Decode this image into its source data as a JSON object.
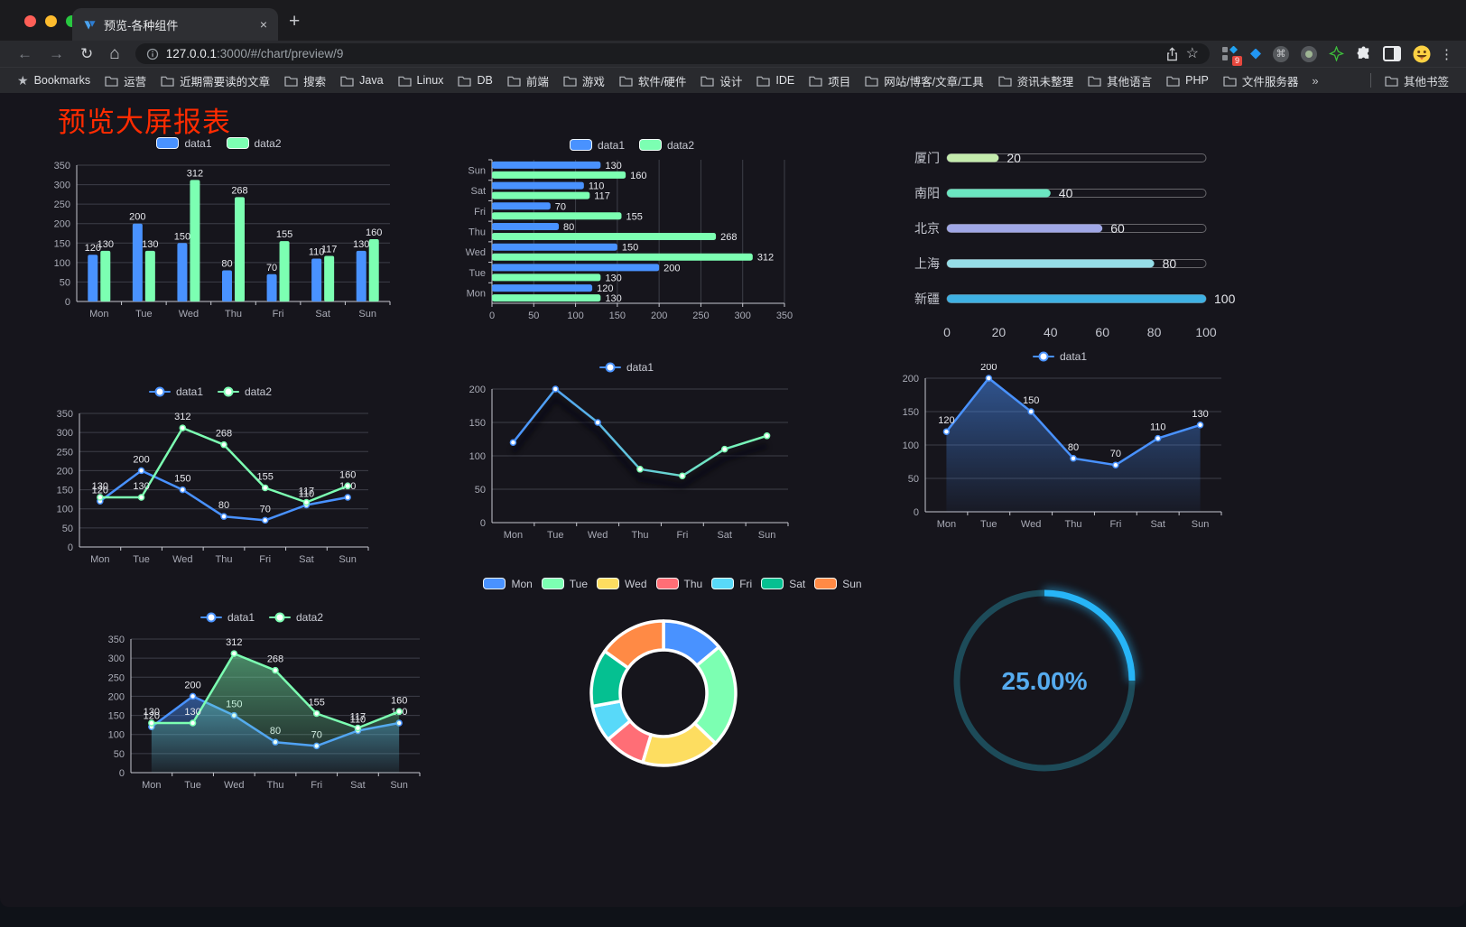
{
  "browser": {
    "tab_title": "预览-各种组件",
    "tab_close": "×",
    "new_tab_label": "+",
    "url_host": "127.0.0.1",
    "url_rest": ":3000/#/chart/preview/9",
    "bookmarks_label": "Bookmarks",
    "bookmarks": [
      "运营",
      "近期需要读的文章",
      "搜索",
      "Java",
      "Linux",
      "DB",
      "前端",
      "游戏",
      "软件/硬件",
      "设计",
      "IDE",
      "项目",
      "网站/博客/文章/工具",
      "资讯未整理",
      "其他语言",
      "PHP",
      "文件服务器"
    ],
    "bookmarks_overflow": "»",
    "other_bookmarks": "其他书签",
    "extension_badge": "9",
    "cmd_glyph": "⌘",
    "kebab_glyph": "⋮",
    "back_glyph": "←",
    "forward_glyph": "→",
    "reload_glyph": "↻",
    "home_glyph": "⌂",
    "star_glyph": "☆",
    "bookmark_star_glyph": "★"
  },
  "page": {
    "title": "预览大屏报表",
    "title_color": "#ff2b00",
    "background": "#16151c"
  },
  "chart_data": [
    {
      "id": "bar-vertical",
      "type": "bar",
      "categories": [
        "Mon",
        "Tue",
        "Wed",
        "Thu",
        "Fri",
        "Sat",
        "Sun"
      ],
      "series": [
        {
          "name": "data1",
          "color": "#4992ff",
          "values": [
            120,
            200,
            150,
            80,
            70,
            110,
            130
          ]
        },
        {
          "name": "data2",
          "color": "#7cffb2",
          "values": [
            130,
            130,
            312,
            268,
            155,
            117,
            160
          ]
        }
      ],
      "ylim": [
        0,
        350
      ],
      "ytick": 50,
      "legend_position": "top",
      "grid": true
    },
    {
      "id": "bar-horizontal",
      "type": "hbar",
      "categories": [
        "Mon",
        "Tue",
        "Wed",
        "Thu",
        "Fri",
        "Sat",
        "Sun"
      ],
      "series": [
        {
          "name": "data1",
          "color": "#4992ff",
          "values": [
            120,
            200,
            150,
            80,
            70,
            110,
            130
          ]
        },
        {
          "name": "data2",
          "color": "#7cffb2",
          "values": [
            130,
            130,
            312,
            268,
            155,
            117,
            160
          ]
        }
      ],
      "xlim": [
        0,
        350
      ],
      "xtick": 50,
      "legend_position": "top",
      "grid": true
    },
    {
      "id": "progress",
      "type": "progress",
      "categories": [
        "厦门",
        "南阳",
        "北京",
        "上海",
        "新疆"
      ],
      "values": [
        20,
        40,
        60,
        80,
        100
      ],
      "colors": [
        "#c4ebad",
        "#6be6c1",
        "#a0a7e6",
        "#96dee8",
        "#3fb1e3"
      ],
      "xlim": [
        0,
        100
      ],
      "xticks": [
        0,
        20,
        40,
        60,
        80,
        100
      ]
    },
    {
      "id": "line-two",
      "type": "line",
      "categories": [
        "Mon",
        "Tue",
        "Wed",
        "Thu",
        "Fri",
        "Sat",
        "Sun"
      ],
      "series": [
        {
          "name": "data1",
          "color": "#4992ff",
          "values": [
            120,
            200,
            150,
            80,
            70,
            110,
            130
          ]
        },
        {
          "name": "data2",
          "color": "#7cffb2",
          "values": [
            130,
            130,
            312,
            268,
            155,
            117,
            160
          ]
        }
      ],
      "ylim": [
        0,
        350
      ],
      "ytick": 50,
      "labels": true,
      "legend_position": "top",
      "grid": true
    },
    {
      "id": "line-gradient",
      "type": "line",
      "categories": [
        "Mon",
        "Tue",
        "Wed",
        "Thu",
        "Fri",
        "Sat",
        "Sun"
      ],
      "series": [
        {
          "name": "data1",
          "color": "#4992ff",
          "gradient": [
            "#4992ff",
            "#7cffb2"
          ],
          "shadow": true,
          "values": [
            120,
            200,
            150,
            80,
            70,
            110,
            130
          ]
        }
      ],
      "ylim": [
        0,
        200
      ],
      "ytick": 50,
      "labels": false,
      "legend_position": "top",
      "grid": true
    },
    {
      "id": "area-single",
      "type": "line",
      "categories": [
        "Mon",
        "Tue",
        "Wed",
        "Thu",
        "Fri",
        "Sat",
        "Sun"
      ],
      "series": [
        {
          "name": "data1",
          "color": "#4992ff",
          "area": true,
          "values": [
            120,
            200,
            150,
            80,
            70,
            110,
            130
          ]
        }
      ],
      "ylim": [
        0,
        200
      ],
      "ytick": 50,
      "labels": true,
      "legend_position": "top",
      "grid": true
    },
    {
      "id": "area-two",
      "type": "line",
      "categories": [
        "Mon",
        "Tue",
        "Wed",
        "Thu",
        "Fri",
        "Sat",
        "Sun"
      ],
      "series": [
        {
          "name": "data1",
          "color": "#4992ff",
          "area": true,
          "values": [
            120,
            200,
            150,
            80,
            70,
            110,
            130
          ]
        },
        {
          "name": "data2",
          "color": "#7cffb2",
          "area": true,
          "values": [
            130,
            130,
            312,
            268,
            155,
            117,
            160
          ]
        }
      ],
      "ylim": [
        0,
        350
      ],
      "ytick": 50,
      "labels": true,
      "legend_position": "top",
      "grid": true
    },
    {
      "id": "donut",
      "type": "pie",
      "categories": [
        "Mon",
        "Tue",
        "Wed",
        "Thu",
        "Fri",
        "Sat",
        "Sun"
      ],
      "values": [
        120,
        200,
        150,
        80,
        70,
        110,
        130
      ],
      "colors": [
        "#4992ff",
        "#7cffb2",
        "#fddd60",
        "#ff6e76",
        "#58d9f9",
        "#05c091",
        "#ff8a45"
      ],
      "inner_radius_ratio": 0.6,
      "legend_position": "top"
    },
    {
      "id": "gauge",
      "type": "gauge",
      "value": 25,
      "label": "25.00%",
      "progress_color": "#27b5f7",
      "track_color": "#1d4b59",
      "text_color": "#56abef"
    }
  ]
}
